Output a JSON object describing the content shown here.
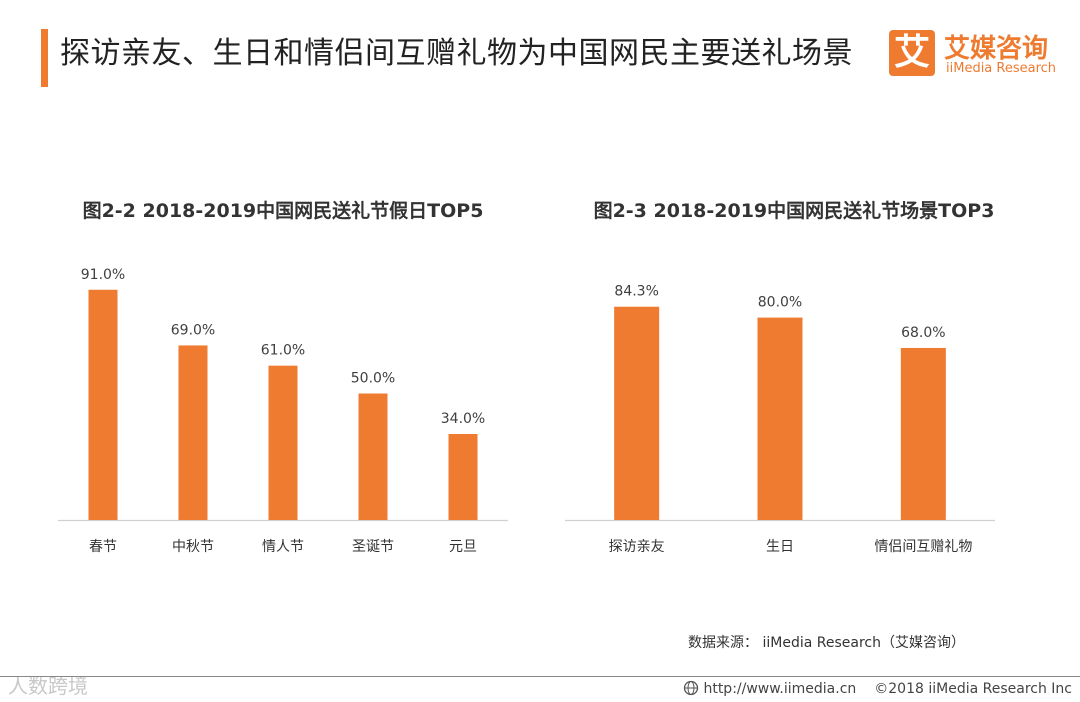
{
  "page": {
    "title": "探访亲友、生日和情侣间互赠礼物为中国网民主要送礼场景",
    "accent": "#ee7b30"
  },
  "logo": {
    "mark": "艾",
    "name_cn": "艾媒咨询",
    "name_en": "iiMedia Research"
  },
  "chart_data": [
    {
      "type": "bar",
      "title": "图2-2 2018-2019中国网民送礼节假日TOP5",
      "categories": [
        "春节",
        "中秋节",
        "情人节",
        "圣诞节",
        "元旦"
      ],
      "values": [
        91.0,
        69.0,
        61.0,
        50.0,
        34.0
      ],
      "value_labels": [
        "91.0%",
        "69.0%",
        "61.0%",
        "50.0%",
        "34.0%"
      ],
      "unit": "%",
      "ylim": [
        0,
        100
      ],
      "grid": false,
      "color": "#ee7b30"
    },
    {
      "type": "bar",
      "title": "图2-3 2018-2019中国网民送礼节场景TOP3",
      "categories": [
        "探访亲友",
        "生日",
        "情侣间互赠礼物"
      ],
      "values": [
        84.3,
        80.0,
        68.0
      ],
      "value_labels": [
        "84.3%",
        "80.0%",
        "68.0%"
      ],
      "unit": "%",
      "ylim": [
        0,
        100
      ],
      "grid": false,
      "color": "#ee7b30"
    }
  ],
  "source": "数据来源： iiMedia Research（艾媒咨询）",
  "watermark": "人数跨境",
  "footer": {
    "url": "http://www.iimedia.cn",
    "copyright": "©2018  iiMedia Research  Inc"
  }
}
